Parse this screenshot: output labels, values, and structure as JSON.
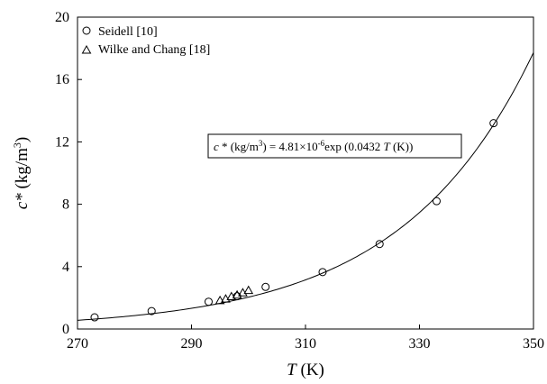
{
  "chart_data": {
    "type": "scatter",
    "xlabel": {
      "symbol": "T",
      "unit": " (K)"
    },
    "ylabel": {
      "symbol": "c*",
      "unit": " (kg/m",
      "unit_sup": "3",
      "unit_end": ")"
    },
    "xlim": [
      270,
      350
    ],
    "ylim": [
      0,
      20
    ],
    "xticks": [
      270,
      290,
      310,
      330,
      350
    ],
    "yticks": [
      0,
      4,
      8,
      12,
      16,
      20
    ],
    "grid": false,
    "legend_position": "top-left",
    "series": [
      {
        "name": "Seidell [10]",
        "marker": "circle",
        "points": [
          [
            273,
            0.75
          ],
          [
            283,
            1.15
          ],
          [
            293,
            1.75
          ],
          [
            298,
            2.1
          ],
          [
            303,
            2.7
          ],
          [
            313,
            3.65
          ],
          [
            323,
            5.45
          ],
          [
            333,
            8.2
          ],
          [
            343,
            13.2
          ]
        ]
      },
      {
        "name": "Wilke and Chang [18]",
        "marker": "triangle",
        "points": [
          [
            295,
            1.8
          ],
          [
            296,
            1.9
          ],
          [
            297,
            2.05
          ],
          [
            298,
            2.15
          ],
          [
            299,
            2.3
          ],
          [
            300,
            2.45
          ]
        ]
      }
    ],
    "fit": {
      "type": "line",
      "a": 4.81e-06,
      "b": 0.0432,
      "equation_parts": {
        "c": "c",
        "star_unit": " * (kg/m",
        "sup1": "3",
        "mid": ") = 4.81×10",
        "sup2": "-6",
        "exp": "exp (0.0432 ",
        "t": "T",
        "end": " (K))"
      }
    }
  }
}
